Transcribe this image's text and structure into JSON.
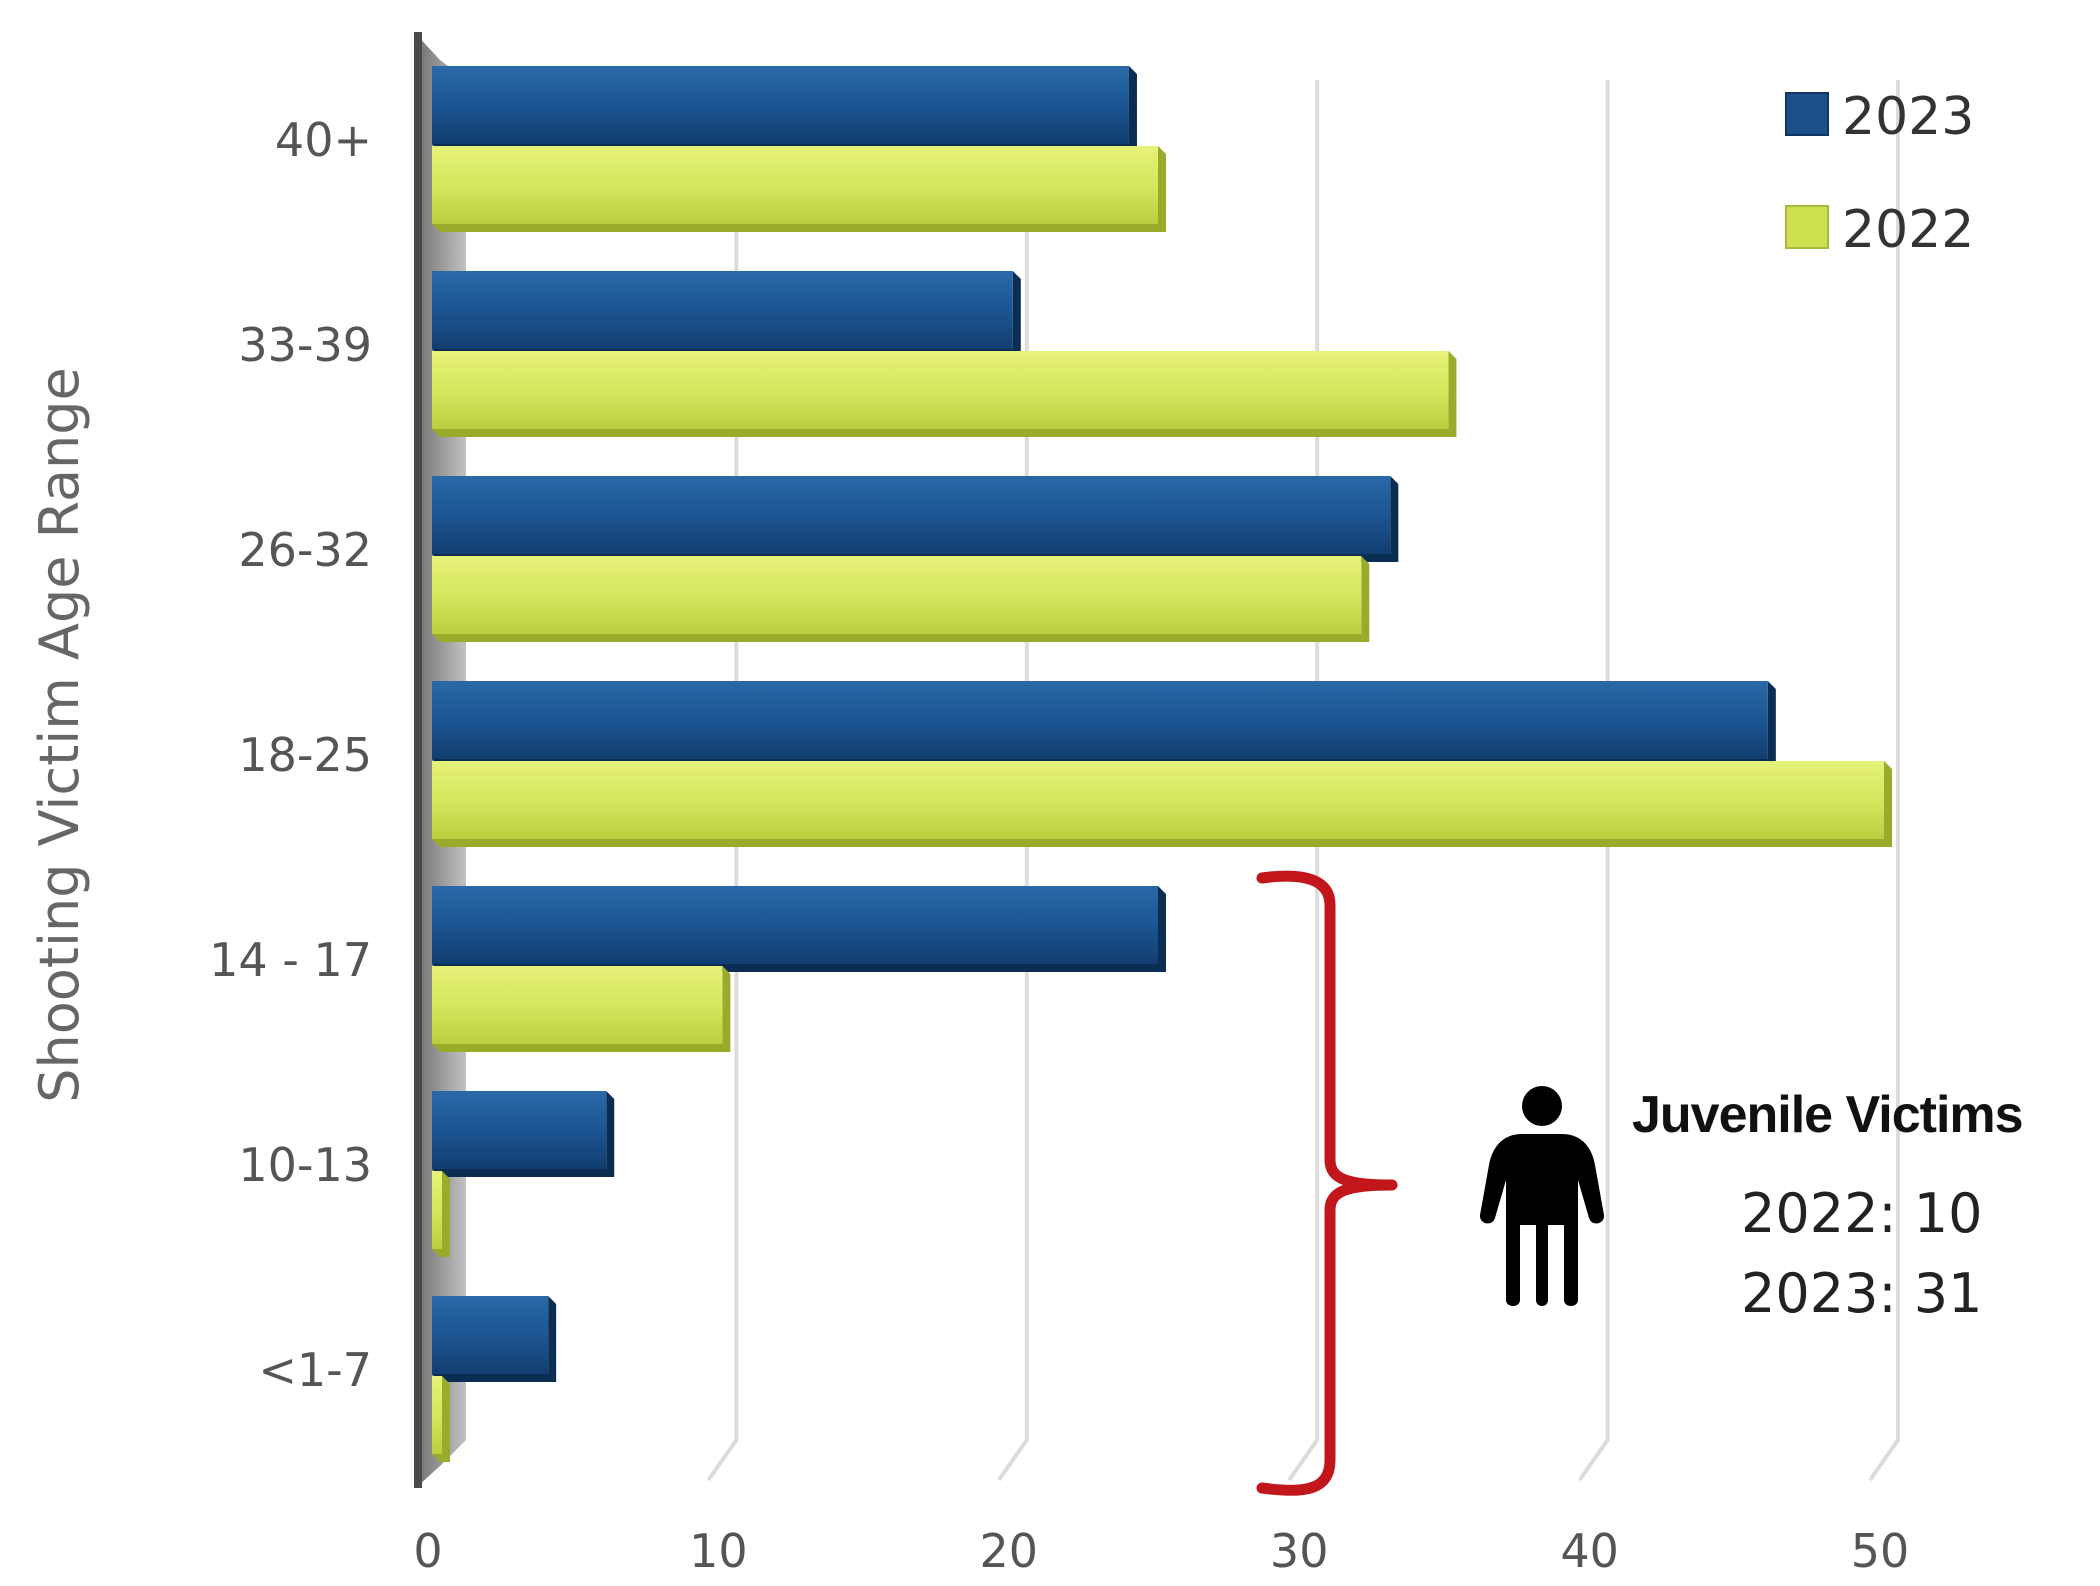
{
  "chart_data": {
    "type": "bar",
    "orientation": "horizontal",
    "ylabel": "Shooting Victim Age Range",
    "xlabel": "",
    "categories": [
      "40+",
      "33-39",
      "26-32",
      "18-25",
      "14 - 17",
      "10-13",
      "<1-7"
    ],
    "series": [
      {
        "name": "2023",
        "color": "#1a4f8a",
        "values": [
          24,
          20,
          33,
          46,
          25,
          6,
          4
        ]
      },
      {
        "name": "2022",
        "color": "#cfe050",
        "values": [
          25,
          35,
          32,
          50,
          10,
          0,
          0
        ]
      }
    ],
    "xlim": [
      0,
      50
    ],
    "xticks": [
      "0",
      "10",
      "20",
      "30",
      "40",
      "50"
    ],
    "grid": true,
    "legend_position": "top-right"
  },
  "annotation": {
    "title": "Juvenile Victims",
    "line_2022": "2022: 10",
    "line_2023": "2023: 31",
    "bracket_color": "#c0161c",
    "icon": "person-icon"
  }
}
